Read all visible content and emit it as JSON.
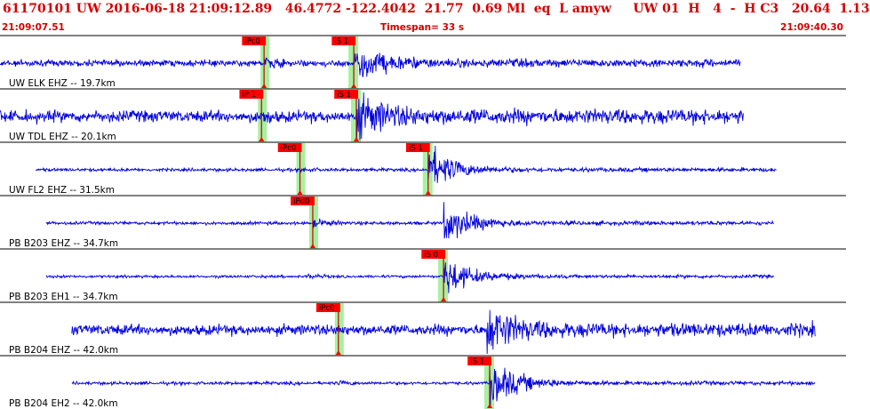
{
  "header": {
    "title": "61170101 UW 2016-06-18 21:09:12.89   46.4772 -122.4042  21.77  0.69 Ml  eq  L amyw     UW 01  H   4  -  H C3   20.64  1.13",
    "time_start": "21:09:07.51",
    "timespan": "Timespan=  33 s",
    "time_end": "21:09:40.30"
  },
  "colors": {
    "title": "#d40000",
    "trace": "#0000dd",
    "pick_flag": "#ff0000",
    "pick_band": "#a8f0a0",
    "pick_line": "#c00000",
    "separator": "#000000"
  },
  "traces": [
    {
      "label": "UW ELK EHZ -- 19.7km",
      "p_pick": "iPc0",
      "s_pick": "iS 1",
      "data_start_s": 0.0,
      "data_end_s": 28.9,
      "p_time_s": 10.3,
      "s_time_s": 13.8,
      "noise_amplitude": 0.12,
      "p_amplitude": 0.28,
      "s_amplitude": 0.75
    },
    {
      "label": "UW TDL EHZ -- 20.1km",
      "p_pick": "iP 1",
      "s_pick": "iS 1",
      "data_start_s": 0.0,
      "data_end_s": 29.0,
      "p_time_s": 10.2,
      "s_time_s": 13.9,
      "noise_amplitude": 0.22,
      "p_amplitude": 0.35,
      "s_amplitude": 0.85
    },
    {
      "label": "UW FL2 EHZ -- 31.5km",
      "p_pick": "iPc0",
      "s_pick": "iS 1",
      "data_start_s": 1.4,
      "data_end_s": 30.3,
      "p_time_s": 11.7,
      "s_time_s": 16.7,
      "noise_amplitude": 0.06,
      "p_amplitude": 0.12,
      "s_amplitude": 0.9
    },
    {
      "label": "PB B203 EHZ -- 34.7km",
      "p_pick": "iPd0",
      "s_pick": "",
      "data_start_s": 1.8,
      "data_end_s": 30.2,
      "p_time_s": 12.2,
      "s_time_s": 17.3,
      "noise_amplitude": 0.06,
      "p_amplitude": 0.18,
      "s_amplitude": 0.85
    },
    {
      "label": "PB B203 EH1 -- 34.7km",
      "p_pick": "",
      "s_pick": "iS 0",
      "data_start_s": 1.8,
      "data_end_s": 30.2,
      "p_time_s": 12.0,
      "s_time_s": 17.3,
      "noise_amplitude": 0.05,
      "p_amplitude": 0.12,
      "s_amplitude": 0.8
    },
    {
      "label": "PB B204 EHZ -- 42.0km",
      "p_pick": "iPc0",
      "s_pick": "",
      "data_start_s": 2.8,
      "data_end_s": 31.8,
      "p_time_s": 13.2,
      "s_time_s": 19.0,
      "noise_amplitude": 0.2,
      "p_amplitude": 0.28,
      "s_amplitude": 0.9
    },
    {
      "label": "PB B204 EH2 -- 42.0km",
      "p_pick": "",
      "s_pick": "iS 1",
      "data_start_s": 2.8,
      "data_end_s": 31.8,
      "p_time_s": 13.2,
      "s_time_s": 19.1,
      "noise_amplitude": 0.06,
      "p_amplitude": 0.12,
      "s_amplitude": 0.95
    }
  ],
  "timespan_s": 33
}
